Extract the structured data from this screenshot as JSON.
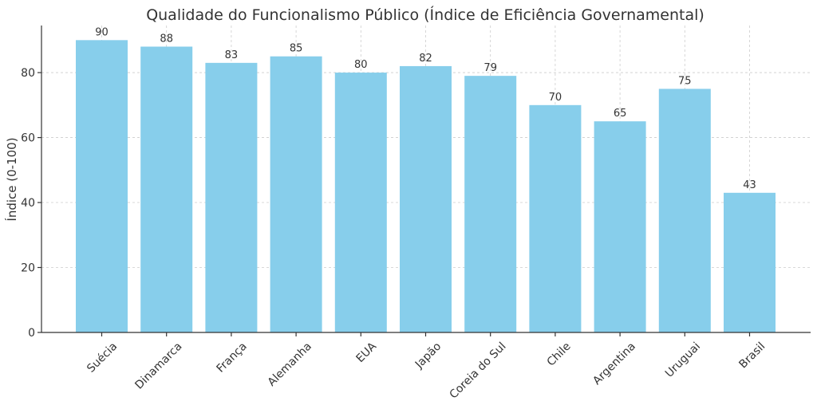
{
  "chart_data": {
    "type": "bar",
    "title": "Qualidade do Funcionalismo Público (Índice de Eficiência Governamental)",
    "xlabel": "",
    "ylabel": "Índice (0-100)",
    "categories": [
      "Suécia",
      "Dinamarca",
      "França",
      "Alemanha",
      "EUA",
      "Japão",
      "Coreia do Sul",
      "Chile",
      "Argentina",
      "Uruguai",
      "Brasil"
    ],
    "values": [
      90,
      88,
      83,
      85,
      80,
      82,
      79,
      70,
      65,
      75,
      43
    ],
    "data_labels": [
      "90",
      "88",
      "83",
      "85",
      "80",
      "82",
      "79",
      "70",
      "65",
      "75",
      "43"
    ],
    "ylim": [
      0,
      94.5
    ],
    "yticks": [
      0,
      20,
      40,
      60,
      80
    ],
    "ytick_labels": [
      "0",
      "20",
      "40",
      "60",
      "80"
    ],
    "grid": true,
    "bar_color": "#87CEEB"
  }
}
